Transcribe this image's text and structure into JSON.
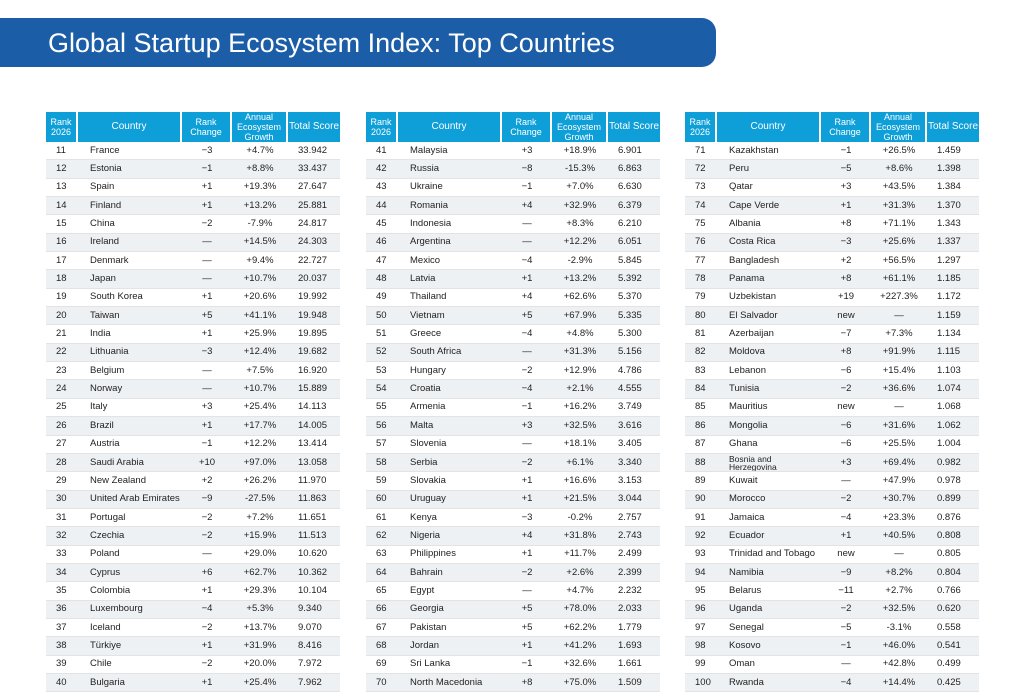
{
  "title": "Global Startup Ecosystem Index: Top Countries",
  "colors": {
    "title_bar": "#1c5da8",
    "header": "#0f9fd8",
    "row_stripe": "#eef1f4"
  },
  "headers": {
    "rank": "Rank 2026",
    "country": "Country",
    "rank_change": "Rank Change",
    "growth": "Annual Ecosystem Growth",
    "score": "Total Score"
  },
  "tables": [
    {
      "rows": [
        [
          "11",
          "France",
          "−3",
          "+4.7%",
          "33.942"
        ],
        [
          "12",
          "Estonia",
          "−1",
          "+8.8%",
          "33.437"
        ],
        [
          "13",
          "Spain",
          "+1",
          "+19.3%",
          "27.647"
        ],
        [
          "14",
          "Finland",
          "+1",
          "+13.2%",
          "25.881"
        ],
        [
          "15",
          "China",
          "−2",
          "-7.9%",
          "24.817"
        ],
        [
          "16",
          "Ireland",
          "—",
          "+14.5%",
          "24.303"
        ],
        [
          "17",
          "Denmark",
          "—",
          "+9.4%",
          "22.727"
        ],
        [
          "18",
          "Japan",
          "—",
          "+10.7%",
          "20.037"
        ],
        [
          "19",
          "South Korea",
          "+1",
          "+20.6%",
          "19.992"
        ],
        [
          "20",
          "Taiwan",
          "+5",
          "+41.1%",
          "19.948"
        ],
        [
          "21",
          "India",
          "+1",
          "+25.9%",
          "19.895"
        ],
        [
          "22",
          "Lithuania",
          "−3",
          "+12.4%",
          "19.682"
        ],
        [
          "23",
          "Belgium",
          "—",
          "+7.5%",
          "16.920"
        ],
        [
          "24",
          "Norway",
          "—",
          "+10.7%",
          "15.889"
        ],
        [
          "25",
          "Italy",
          "+3",
          "+25.4%",
          "14.113"
        ],
        [
          "26",
          "Brazil",
          "+1",
          "+17.7%",
          "14.005"
        ],
        [
          "27",
          "Austria",
          "−1",
          "+12.2%",
          "13.414"
        ],
        [
          "28",
          "Saudi Arabia",
          "+10",
          "+97.0%",
          "13.058"
        ],
        [
          "29",
          "New Zealand",
          "+2",
          "+26.2%",
          "11.970"
        ],
        [
          "30",
          "United Arab Emirates",
          "−9",
          "-27.5%",
          "11.863"
        ],
        [
          "31",
          "Portugal",
          "−2",
          "+7.2%",
          "11.651"
        ],
        [
          "32",
          "Czechia",
          "−2",
          "+15.9%",
          "11.513"
        ],
        [
          "33",
          "Poland",
          "—",
          "+29.0%",
          "10.620"
        ],
        [
          "34",
          "Cyprus",
          "+6",
          "+62.7%",
          "10.362"
        ],
        [
          "35",
          "Colombia",
          "+1",
          "+29.3%",
          "10.104"
        ],
        [
          "36",
          "Luxembourg",
          "−4",
          "+5.3%",
          "9.340"
        ],
        [
          "37",
          "Iceland",
          "−2",
          "+13.7%",
          "9.070"
        ],
        [
          "38",
          "Türkiye",
          "+1",
          "+31.9%",
          "8.416"
        ],
        [
          "39",
          "Chile",
          "−2",
          "+20.0%",
          "7.972"
        ],
        [
          "40",
          "Bulgaria",
          "+1",
          "+25.4%",
          "7.962"
        ]
      ]
    },
    {
      "rows": [
        [
          "41",
          "Malaysia",
          "+3",
          "+18.9%",
          "6.901"
        ],
        [
          "42",
          "Russia",
          "−8",
          "-15.3%",
          "6.863"
        ],
        [
          "43",
          "Ukraine",
          "−1",
          "+7.0%",
          "6.630"
        ],
        [
          "44",
          "Romania",
          "+4",
          "+32.9%",
          "6.379"
        ],
        [
          "45",
          "Indonesia",
          "—",
          "+8.3%",
          "6.210"
        ],
        [
          "46",
          "Argentina",
          "—",
          "+12.2%",
          "6.051"
        ],
        [
          "47",
          "Mexico",
          "−4",
          "-2.9%",
          "5.845"
        ],
        [
          "48",
          "Latvia",
          "+1",
          "+13.2%",
          "5.392"
        ],
        [
          "49",
          "Thailand",
          "+4",
          "+62.6%",
          "5.370"
        ],
        [
          "50",
          "Vietnam",
          "+5",
          "+67.9%",
          "5.335"
        ],
        [
          "51",
          "Greece",
          "−4",
          "+4.8%",
          "5.300"
        ],
        [
          "52",
          "South Africa",
          "—",
          "+31.3%",
          "5.156"
        ],
        [
          "53",
          "Hungary",
          "−2",
          "+12.9%",
          "4.786"
        ],
        [
          "54",
          "Croatia",
          "−4",
          "+2.1%",
          "4.555"
        ],
        [
          "55",
          "Armenia",
          "−1",
          "+16.2%",
          "3.749"
        ],
        [
          "56",
          "Malta",
          "+3",
          "+32.5%",
          "3.616"
        ],
        [
          "57",
          "Slovenia",
          "—",
          "+18.1%",
          "3.405"
        ],
        [
          "58",
          "Serbia",
          "−2",
          "+6.1%",
          "3.340"
        ],
        [
          "59",
          "Slovakia",
          "+1",
          "+16.6%",
          "3.153"
        ],
        [
          "60",
          "Uruguay",
          "+1",
          "+21.5%",
          "3.044"
        ],
        [
          "61",
          "Kenya",
          "−3",
          "-0.2%",
          "2.757"
        ],
        [
          "62",
          "Nigeria",
          "+4",
          "+31.8%",
          "2.743"
        ],
        [
          "63",
          "Philippines",
          "+1",
          "+11.7%",
          "2.499"
        ],
        [
          "64",
          "Bahrain",
          "−2",
          "+2.6%",
          "2.399"
        ],
        [
          "65",
          "Egypt",
          "—",
          "+4.7%",
          "2.232"
        ],
        [
          "66",
          "Georgia",
          "+5",
          "+78.0%",
          "2.033"
        ],
        [
          "67",
          "Pakistan",
          "+5",
          "+62.2%",
          "1.779"
        ],
        [
          "68",
          "Jordan",
          "+1",
          "+41.2%",
          "1.693"
        ],
        [
          "69",
          "Sri Lanka",
          "−1",
          "+32.6%",
          "1.661"
        ],
        [
          "70",
          "North Macedonia",
          "+8",
          "+75.0%",
          "1.509"
        ]
      ]
    },
    {
      "rows": [
        [
          "71",
          "Kazakhstan",
          "−1",
          "+26.5%",
          "1.459"
        ],
        [
          "72",
          "Peru",
          "−5",
          "+8.6%",
          "1.398"
        ],
        [
          "73",
          "Qatar",
          "+3",
          "+43.5%",
          "1.384"
        ],
        [
          "74",
          "Cape Verde",
          "+1",
          "+31.3%",
          "1.370"
        ],
        [
          "75",
          "Albania",
          "+8",
          "+71.1%",
          "1.343"
        ],
        [
          "76",
          "Costa Rica",
          "−3",
          "+25.6%",
          "1.337"
        ],
        [
          "77",
          "Bangladesh",
          "+2",
          "+56.5%",
          "1.297"
        ],
        [
          "78",
          "Panama",
          "+8",
          "+61.1%",
          "1.185"
        ],
        [
          "79",
          "Uzbekistan",
          "+19",
          "+227.3%",
          "1.172"
        ],
        [
          "80",
          "El Salvador",
          "new",
          "—",
          "1.159"
        ],
        [
          "81",
          "Azerbaijan",
          "−7",
          "+7.3%",
          "1.134"
        ],
        [
          "82",
          "Moldova",
          "+8",
          "+91.9%",
          "1.115"
        ],
        [
          "83",
          "Lebanon",
          "−6",
          "+15.4%",
          "1.103"
        ],
        [
          "84",
          "Tunisia",
          "−2",
          "+36.6%",
          "1.074"
        ],
        [
          "85",
          "Mauritius",
          "new",
          "—",
          "1.068"
        ],
        [
          "86",
          "Mongolia",
          "−6",
          "+31.6%",
          "1.062"
        ],
        [
          "87",
          "Ghana",
          "−6",
          "+25.5%",
          "1.004"
        ],
        [
          "88",
          "Bosnia and Herzegovina",
          "+3",
          "+69.4%",
          "0.982"
        ],
        [
          "89",
          "Kuwait",
          "—",
          "+47.9%",
          "0.978"
        ],
        [
          "90",
          "Morocco",
          "−2",
          "+30.7%",
          "0.899"
        ],
        [
          "91",
          "Jamaica",
          "−4",
          "+23.3%",
          "0.876"
        ],
        [
          "92",
          "Ecuador",
          "+1",
          "+40.5%",
          "0.808"
        ],
        [
          "93",
          "Trinidad and Tobago",
          "new",
          "—",
          "0.805"
        ],
        [
          "94",
          "Namibia",
          "−9",
          "+8.2%",
          "0.804"
        ],
        [
          "95",
          "Belarus",
          "−11",
          "+2.7%",
          "0.766"
        ],
        [
          "96",
          "Uganda",
          "−2",
          "+32.5%",
          "0.620"
        ],
        [
          "97",
          "Senegal",
          "−5",
          "-3.1%",
          "0.558"
        ],
        [
          "98",
          "Kosovo",
          "−1",
          "+46.0%",
          "0.541"
        ],
        [
          "99",
          "Oman",
          "—",
          "+42.8%",
          "0.499"
        ],
        [
          "100",
          "Rwanda",
          "−4",
          "+14.4%",
          "0.425"
        ]
      ]
    }
  ]
}
